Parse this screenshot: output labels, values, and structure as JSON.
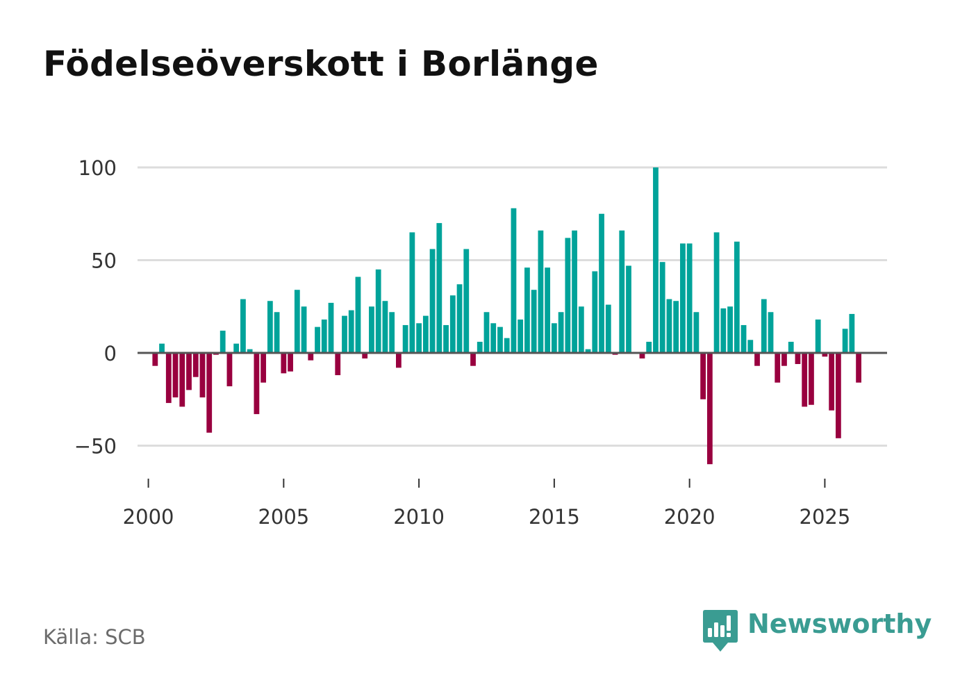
{
  "title": "Födelseöverskott i Borlänge",
  "source": "Källa: SCB",
  "brand": {
    "name": "Newsworthy",
    "icon": "newsworthy-logo-icon"
  },
  "colors": {
    "positive": "#00A39A",
    "negative": "#99003F",
    "grid": "#dddddd",
    "zero_line": "#555555",
    "brand": "#3a9c92",
    "title": "#111111",
    "source": "#6b6b6b"
  },
  "chart_data": {
    "type": "bar",
    "title": "Födelseöverskott i Borlänge",
    "xlabel": "",
    "ylabel": "",
    "ylim": [
      -75,
      100
    ],
    "xlim": [
      1999.6,
      2027.3
    ],
    "yticks": [
      100,
      50,
      0,
      -50
    ],
    "ytick_labels": [
      "100",
      "50",
      "0",
      "−50"
    ],
    "xticks": [
      2000,
      2005,
      2010,
      2015,
      2020,
      2025
    ],
    "xtick_labels": [
      "2000",
      "2005",
      "2010",
      "2015",
      "2020",
      "2025"
    ],
    "grid": true,
    "bar_period": "quarter",
    "series": [
      {
        "name": "Födelseöverskott",
        "start": 2000.0,
        "step": 0.25,
        "values": [
          0,
          -7,
          5,
          -27,
          -24,
          -29,
          -20,
          -13,
          -24,
          -43,
          -1,
          12,
          -18,
          5,
          29,
          2,
          -33,
          -16,
          28,
          22,
          -11,
          -10,
          34,
          25,
          -4,
          14,
          18,
          27,
          -12,
          20,
          23,
          41,
          -3,
          25,
          45,
          28,
          22,
          -8,
          15,
          65,
          16,
          20,
          56,
          70,
          15,
          31,
          37,
          56,
          -7,
          6,
          22,
          16,
          14,
          8,
          78,
          18,
          46,
          34,
          66,
          46,
          16,
          22,
          62,
          66,
          25,
          2,
          44,
          75,
          26,
          -1,
          66,
          47,
          0,
          -3,
          6,
          100,
          49,
          29,
          28,
          59,
          59,
          22,
          -25,
          -60,
          65,
          24,
          25,
          60,
          15,
          7,
          -7,
          29,
          22,
          -16,
          -7,
          6,
          -6,
          -29,
          -28,
          18,
          -2,
          -31,
          -46,
          13,
          21,
          -16
        ]
      }
    ]
  }
}
